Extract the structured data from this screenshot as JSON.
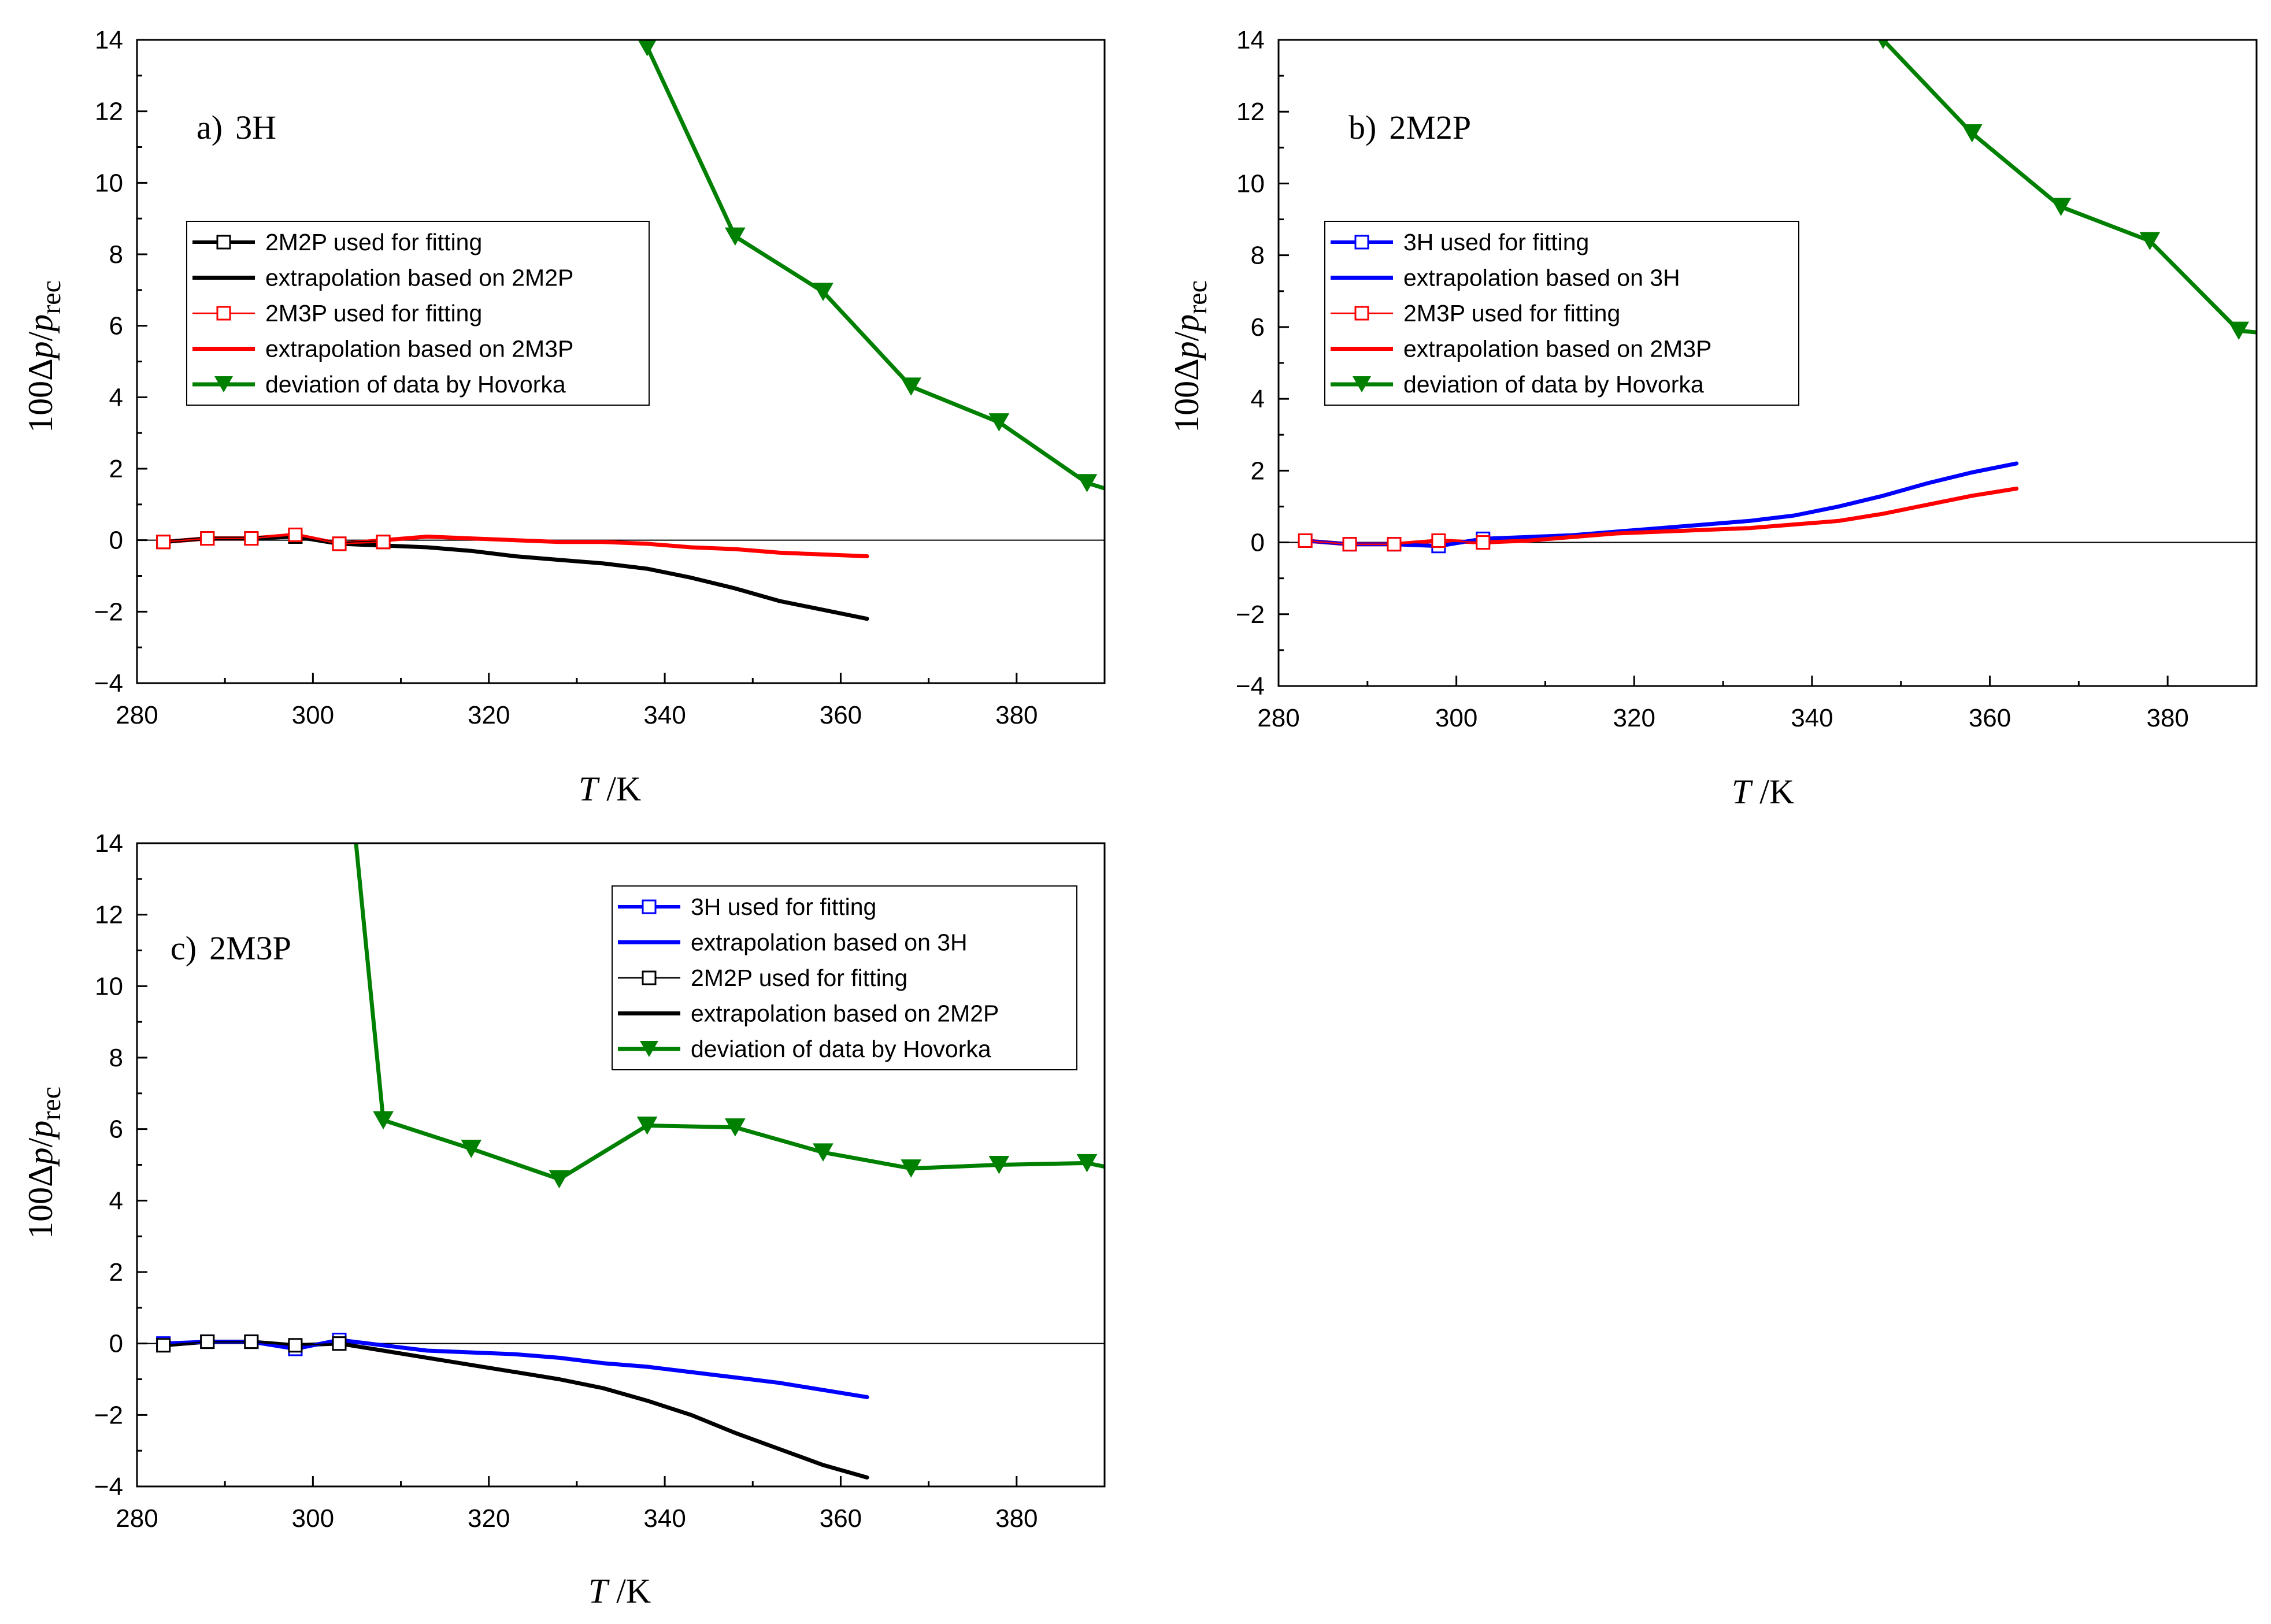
{
  "chart_data": [
    {
      "type": "line",
      "panel_label": "a)",
      "panel_name": "3H",
      "xlabel_italic": "T",
      "xlabel_unit": " /K",
      "ylabel_prefix": "100Δ",
      "ylabel_p": "p",
      "ylabel_slash": "/",
      "ylabel_p2": "p",
      "ylabel_sub": "rec",
      "xlim": [
        280,
        390
      ],
      "ylim": [
        -4,
        14
      ],
      "xticks": [
        280,
        300,
        320,
        340,
        360,
        380
      ],
      "yticks": [
        -4,
        -2,
        0,
        2,
        4,
        6,
        8,
        10,
        12,
        14
      ],
      "xtick_labels": [
        "280",
        "300",
        "320",
        "340",
        "360",
        "380"
      ],
      "ytick_labels": [
        "−4",
        "−2",
        "0",
        "2",
        "4",
        "6",
        "8",
        "10",
        "12",
        "14"
      ],
      "zero_line": true,
      "legend_position": "upper-left",
      "series": [
        {
          "name": "2M2P used for fitting",
          "color": "#000000",
          "style": "line-square",
          "x": [
            283,
            288,
            293,
            298,
            303,
            308
          ],
          "y": [
            -0.05,
            0.05,
            0.05,
            0.1,
            -0.1,
            -0.05
          ]
        },
        {
          "name": "extrapolation based on 2M2P",
          "color": "#000000",
          "style": "line",
          "x": [
            283,
            288,
            293,
            298,
            303,
            308,
            313,
            318,
            323,
            328,
            333,
            338,
            343,
            348,
            353,
            358,
            363
          ],
          "y": [
            -0.05,
            0.05,
            0.05,
            0.1,
            -0.1,
            -0.15,
            -0.2,
            -0.3,
            -0.45,
            -0.55,
            -0.65,
            -0.8,
            -1.05,
            -1.35,
            -1.7,
            -1.95,
            -2.2
          ]
        },
        {
          "name": "2M3P used for fitting",
          "color": "#ff0000",
          "style": "thin-square",
          "x": [
            283,
            288,
            293,
            298,
            303,
            308
          ],
          "y": [
            -0.05,
            0.05,
            0.05,
            0.15,
            -0.1,
            -0.05
          ]
        },
        {
          "name": "extrapolation based on 2M3P",
          "color": "#ff0000",
          "style": "line",
          "x": [
            283,
            288,
            293,
            298,
            303,
            308,
            313,
            318,
            323,
            328,
            333,
            338,
            343,
            348,
            353,
            358,
            363
          ],
          "y": [
            -0.05,
            0.05,
            0.05,
            0.15,
            -0.1,
            0.0,
            0.1,
            0.05,
            0.0,
            -0.05,
            -0.05,
            -0.1,
            -0.2,
            -0.25,
            -0.35,
            -0.4,
            -0.45
          ]
        },
        {
          "name": "deviation of data by Hovorka",
          "color": "#008000",
          "style": "line-triangle",
          "x": [
            333.5,
            338,
            348,
            358,
            368,
            378,
            388,
            390
          ],
          "y": [
            16.5,
            13.8,
            8.5,
            6.95,
            4.3,
            3.3,
            1.6,
            1.45
          ],
          "markers": [
            1,
            2,
            3,
            4,
            5,
            6
          ]
        }
      ]
    },
    {
      "type": "line",
      "panel_label": "b)",
      "panel_name": "2M2P",
      "xlabel_italic": "T",
      "xlabel_unit": " /K",
      "ylabel_prefix": "100Δ",
      "ylabel_p": "p",
      "ylabel_slash": "/",
      "ylabel_p2": "p",
      "ylabel_sub": "rec",
      "xlim": [
        280,
        390
      ],
      "ylim": [
        -4,
        14
      ],
      "xticks": [
        280,
        300,
        320,
        340,
        360,
        380
      ],
      "yticks": [
        -4,
        -2,
        0,
        2,
        4,
        6,
        8,
        10,
        12,
        14
      ],
      "xtick_labels": [
        "280",
        "300",
        "320",
        "340",
        "360",
        "380"
      ],
      "ytick_labels": [
        "−4",
        "−2",
        "0",
        "2",
        "4",
        "6",
        "8",
        "10",
        "12",
        "14"
      ],
      "zero_line": true,
      "legend_position": "upper-left",
      "series": [
        {
          "name": "3H used for fitting",
          "color": "#0000ff",
          "style": "line-square",
          "x": [
            283,
            288,
            293,
            298,
            303
          ],
          "y": [
            0.05,
            -0.05,
            -0.05,
            -0.1,
            0.1
          ]
        },
        {
          "name": "extrapolation based on 3H",
          "color": "#0000ff",
          "style": "line",
          "x": [
            283,
            288,
            293,
            298,
            303,
            308,
            313,
            318,
            323,
            328,
            333,
            338,
            343,
            348,
            353,
            358,
            363
          ],
          "y": [
            0.05,
            -0.05,
            -0.05,
            -0.1,
            0.1,
            0.15,
            0.2,
            0.3,
            0.4,
            0.5,
            0.6,
            0.75,
            1.0,
            1.3,
            1.65,
            1.95,
            2.2
          ]
        },
        {
          "name": "2M3P used for fitting",
          "color": "#ff0000",
          "style": "thin-square",
          "x": [
            283,
            288,
            293,
            298,
            303
          ],
          "y": [
            0.05,
            -0.05,
            -0.05,
            0.05,
            0.0
          ]
        },
        {
          "name": "extrapolation based on 2M3P",
          "color": "#ff0000",
          "style": "line",
          "x": [
            283,
            288,
            293,
            298,
            303,
            308,
            313,
            318,
            323,
            328,
            333,
            338,
            343,
            348,
            353,
            358,
            363
          ],
          "y": [
            0.05,
            -0.05,
            -0.05,
            0.05,
            0.0,
            0.05,
            0.15,
            0.25,
            0.3,
            0.35,
            0.4,
            0.5,
            0.6,
            0.8,
            1.05,
            1.3,
            1.5
          ]
        },
        {
          "name": "deviation of data by Hovorka",
          "color": "#008000",
          "style": "line-triangle",
          "x": [
            348,
            358,
            368,
            378,
            388,
            390
          ],
          "y": [
            14.0,
            11.4,
            9.35,
            8.4,
            5.9,
            5.85
          ],
          "markers": [
            0,
            1,
            2,
            3,
            4
          ]
        }
      ]
    },
    {
      "type": "line",
      "panel_label": "c)",
      "panel_name": "2M3P",
      "xlabel_italic": "T",
      "xlabel_unit": " /K",
      "ylabel_prefix": "100Δ",
      "ylabel_p": "p",
      "ylabel_slash": "/",
      "ylabel_p2": "p",
      "ylabel_sub": "rec",
      "xlim": [
        280,
        390
      ],
      "ylim": [
        -4,
        14
      ],
      "xticks": [
        280,
        300,
        320,
        340,
        360,
        380
      ],
      "yticks": [
        -4,
        -2,
        0,
        2,
        4,
        6,
        8,
        10,
        12,
        14
      ],
      "xtick_labels": [
        "280",
        "300",
        "320",
        "340",
        "360",
        "380"
      ],
      "ytick_labels": [
        "−4",
        "−2",
        "0",
        "2",
        "4",
        "6",
        "8",
        "10",
        "12",
        "14"
      ],
      "zero_line": true,
      "legend_position": "upper-right",
      "series": [
        {
          "name": "3H used for fitting",
          "color": "#0000ff",
          "style": "line-square",
          "x": [
            283,
            288,
            293,
            298,
            303
          ],
          "y": [
            0.0,
            0.05,
            0.05,
            -0.15,
            0.1
          ]
        },
        {
          "name": "extrapolation based on 3H",
          "color": "#0000ff",
          "style": "line",
          "x": [
            283,
            288,
            293,
            298,
            303,
            308,
            313,
            318,
            323,
            328,
            333,
            338,
            343,
            348,
            353,
            358,
            363
          ],
          "y": [
            0.0,
            0.05,
            0.05,
            -0.15,
            0.1,
            -0.05,
            -0.2,
            -0.25,
            -0.3,
            -0.4,
            -0.55,
            -0.65,
            -0.8,
            -0.95,
            -1.1,
            -1.3,
            -1.5
          ]
        },
        {
          "name": "2M2P used for fitting",
          "color": "#000000",
          "style": "thin-square",
          "x": [
            283,
            288,
            293,
            298,
            303
          ],
          "y": [
            -0.05,
            0.05,
            0.05,
            -0.05,
            0.0
          ]
        },
        {
          "name": "extrapolation based on 2M2P",
          "color": "#000000",
          "style": "line",
          "x": [
            283,
            288,
            293,
            298,
            303,
            308,
            313,
            318,
            323,
            328,
            333,
            338,
            343,
            348,
            353,
            358,
            363
          ],
          "y": [
            -0.05,
            0.05,
            0.05,
            -0.05,
            0.0,
            -0.2,
            -0.4,
            -0.6,
            -0.8,
            -1.0,
            -1.25,
            -1.6,
            -2.0,
            -2.5,
            -2.95,
            -3.4,
            -3.75
          ]
        },
        {
          "name": "deviation of data by Hovorka",
          "color": "#008000",
          "style": "line-triangle",
          "x": [
            304.5,
            308,
            318,
            328,
            338,
            348,
            358,
            368,
            378,
            388,
            390
          ],
          "y": [
            15.0,
            6.25,
            5.45,
            4.6,
            6.1,
            6.05,
            5.35,
            4.9,
            5.0,
            5.05,
            4.95
          ],
          "markers": [
            1,
            2,
            3,
            4,
            5,
            6,
            7,
            8,
            9
          ]
        }
      ]
    }
  ]
}
